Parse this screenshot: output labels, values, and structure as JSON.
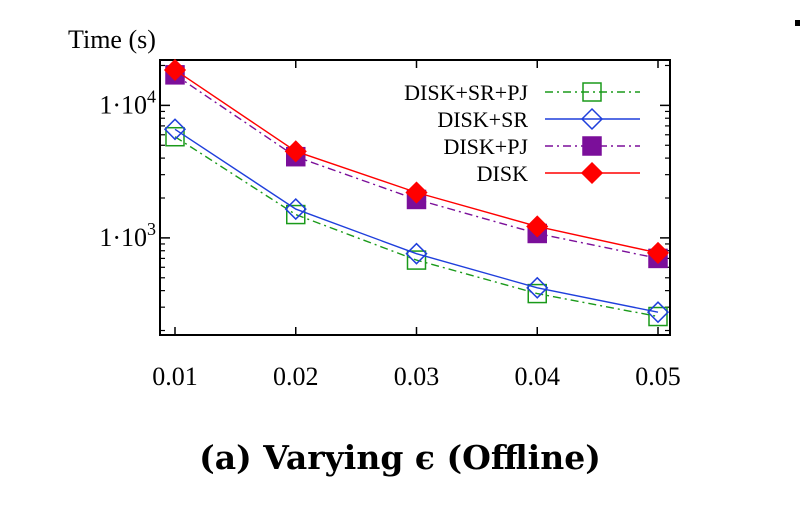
{
  "caption": "(a) Varying ϵ (Offline)",
  "chart_data": {
    "type": "line",
    "ylabel": "Time (s)",
    "xlabel": "",
    "yscale": "log",
    "x": [
      0.01,
      0.02,
      0.03,
      0.04,
      0.05
    ],
    "xticks": [
      "0.01",
      "0.02",
      "0.03",
      "0.04",
      "0.05"
    ],
    "yticks": [
      {
        "value": 1000,
        "mantissa": "1·10",
        "exp": "3"
      },
      {
        "value": 10000,
        "mantissa": "1·10",
        "exp": "4"
      }
    ],
    "ylim": [
      185,
      22000
    ],
    "xlim": [
      0.01,
      0.05
    ],
    "legend_position": "top-right",
    "grid": false,
    "series": [
      {
        "name": "DISK+SR+PJ",
        "color": "#1a9a1a",
        "marker": "square-open",
        "dash": "8,4,2,4",
        "values": [
          5800,
          1500,
          680,
          380,
          255
        ]
      },
      {
        "name": "DISK+SR",
        "color": "#1f3fdc",
        "marker": "diamond-open",
        "dash": "",
        "values": [
          6600,
          1650,
          760,
          420,
          275
        ]
      },
      {
        "name": "DISK+PJ",
        "color": "#7b0f9a",
        "marker": "square-filled",
        "dash": "8,4,2,4",
        "values": [
          17000,
          4100,
          1950,
          1080,
          700
        ]
      },
      {
        "name": "DISK",
        "color": "#ff0000",
        "marker": "diamond-filled",
        "dash": "",
        "values": [
          18500,
          4500,
          2200,
          1220,
          770
        ]
      }
    ]
  }
}
